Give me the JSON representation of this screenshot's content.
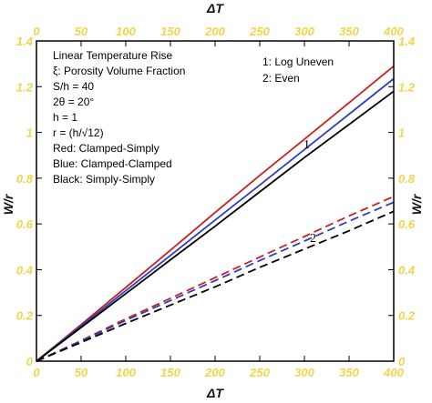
{
  "chart_data": {
    "type": "line",
    "xlabel": "ΔT",
    "ylabel": "W/r",
    "xlim": [
      0,
      400
    ],
    "ylim": [
      0,
      1.4
    ],
    "x_ticks": [
      "0",
      "50",
      "100",
      "150",
      "200",
      "250",
      "300",
      "350",
      "400"
    ],
    "y_ticks": [
      "0",
      "0.2",
      "0.4",
      "0.6",
      "0.8",
      "1",
      "1.2",
      "1.4"
    ],
    "mirrored_axes": true,
    "tick_label_color": "#f0d44a",
    "annotations": [
      "Linear Temperature Rise",
      "ξ: Porosity Volume Fraction",
      "S/h = 40",
      "2θ = 20°",
      "h = 1",
      "r = (h/√12)",
      "Red: Clamped-Simply",
      "Blue: Clamped-Clamped",
      "Black: Simply-Simply"
    ],
    "legend": [
      "1: Log Uneven",
      "2: Even"
    ],
    "curve_labels": [
      "1",
      "2"
    ],
    "series": [
      {
        "color": "#cc1f1f",
        "style": "solid",
        "x": [
          0,
          50,
          100,
          150,
          200,
          250,
          300,
          350,
          400
        ],
        "y": [
          0,
          0.16,
          0.322,
          0.485,
          0.65,
          0.812,
          0.97,
          1.13,
          1.29
        ]
      },
      {
        "color": "#2a3fc4",
        "style": "solid",
        "x": [
          0,
          50,
          100,
          150,
          200,
          250,
          300,
          350,
          400
        ],
        "y": [
          0,
          0.154,
          0.308,
          0.462,
          0.617,
          0.77,
          0.925,
          1.08,
          1.235
        ]
      },
      {
        "color": "#000000",
        "style": "solid",
        "x": [
          0,
          50,
          100,
          150,
          200,
          250,
          300,
          350,
          400
        ],
        "y": [
          0,
          0.147,
          0.295,
          0.443,
          0.59,
          0.74,
          0.89,
          1.035,
          1.18
        ]
      },
      {
        "color": "#cc1f1f",
        "style": "dashed",
        "x": [
          0,
          50,
          100,
          150,
          200,
          250,
          300,
          350,
          400
        ],
        "y": [
          0,
          0.09,
          0.185,
          0.275,
          0.365,
          0.455,
          0.545,
          0.635,
          0.72
        ]
      },
      {
        "color": "#2a3fc4",
        "style": "dashed",
        "x": [
          0,
          50,
          100,
          150,
          200,
          250,
          300,
          350,
          400
        ],
        "y": [
          0,
          0.087,
          0.178,
          0.265,
          0.352,
          0.44,
          0.525,
          0.612,
          0.695
        ]
      },
      {
        "color": "#000000",
        "style": "dashed",
        "x": [
          0,
          50,
          100,
          150,
          200,
          250,
          300,
          350,
          400
        ],
        "y": [
          0,
          0.082,
          0.165,
          0.245,
          0.325,
          0.41,
          0.49,
          0.57,
          0.655
        ]
      }
    ]
  }
}
